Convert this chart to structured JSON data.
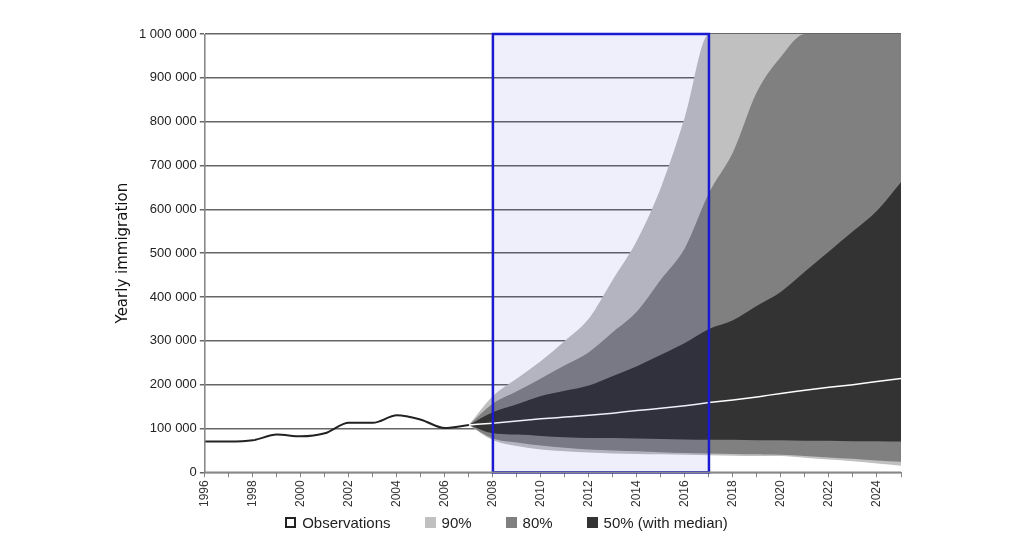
{
  "chart_data": {
    "type": "line",
    "ylabel": "Yearly immigration",
    "legend": "bottom",
    "grid": "y",
    "marker": "none",
    "xlim": [
      1996,
      2025
    ],
    "xticks": [
      1996,
      {
        "value": 1997,
        "label": null
      },
      1998,
      {
        "value": 1999,
        "label": null
      },
      2000,
      {
        "value": 2001,
        "label": null
      },
      2002,
      {
        "value": 2003,
        "label": null
      },
      2004,
      {
        "value": 2005,
        "label": null
      },
      2006,
      {
        "value": 2007,
        "label": null
      },
      2008,
      {
        "value": 2009,
        "label": null
      },
      2010,
      {
        "value": 2011,
        "label": null
      },
      2012,
      {
        "value": 2013,
        "label": null
      },
      2014,
      {
        "value": 2015,
        "label": null
      },
      2016,
      {
        "value": 2017,
        "label": null
      },
      2018,
      {
        "value": 2019,
        "label": null
      },
      2020,
      {
        "value": 2021,
        "label": null
      },
      2022,
      {
        "value": 2023,
        "label": null
      },
      2024,
      {
        "value": 2025,
        "label": null
      }
    ],
    "ylim": [
      0,
      1000000
    ],
    "yticks": [
      0,
      {
        "value": 100000,
        "label": "100 000"
      },
      {
        "value": 200000,
        "label": "200 000"
      },
      {
        "value": 300000,
        "label": "300 000"
      },
      {
        "value": 400000,
        "label": "400 000"
      },
      {
        "value": 500000,
        "label": "500 000"
      },
      {
        "value": 600000,
        "label": "600 000"
      },
      {
        "value": 700000,
        "label": "700 000"
      },
      {
        "value": 800000,
        "label": "800 000"
      },
      {
        "value": 900000,
        "label": "900 000"
      },
      {
        "value": 1000000,
        "label": "1 000 000"
      }
    ],
    "bands": [
      {
        "axis": "x",
        "from": 2008,
        "to": 2017,
        "color": "#1a1ad0"
      }
    ],
    "series": [
      {
        "name": "Observations",
        "type": "line",
        "color": "#222222",
        "x": [
          1996,
          1997,
          1998,
          1999,
          2000,
          2001,
          2002,
          2003,
          2004,
          2005,
          2006,
          2007
        ],
        "values": [
          70000,
          70000,
          73000,
          86000,
          82000,
          89000,
          113000,
          113000,
          130000,
          120000,
          101000,
          108000
        ]
      },
      {
        "name": "90%",
        "type": "area",
        "color": "#c0c0c0",
        "x": [
          2007,
          2008,
          2009,
          2010,
          2011,
          2012,
          2013,
          2014,
          2015,
          2016,
          2017,
          2018,
          2019,
          2020,
          2021,
          2022,
          2023,
          2024,
          2025
        ],
        "values": [
          null,
          null,
          null,
          null,
          null,
          null,
          null,
          null,
          null,
          null,
          null,
          null,
          null,
          null,
          null,
          null,
          null,
          null,
          null
        ],
        "lower": [
          108000,
          73000,
          60000,
          52000,
          48000,
          45000,
          43000,
          42000,
          41000,
          40000,
          39000,
          38000,
          37000,
          37000,
          33000,
          29000,
          25000,
          20000,
          15000
        ],
        "upper": [
          108000,
          174000,
          214000,
          254000,
          300000,
          351000,
          440000,
          529000,
          650000,
          811000,
          1000000,
          1000000,
          1000000,
          1000000,
          1000000,
          1000000,
          1000000,
          1000000,
          1000000
        ]
      },
      {
        "name": "80%",
        "type": "area",
        "color": "#808080",
        "x": [
          2007,
          2008,
          2009,
          2010,
          2011,
          2012,
          2013,
          2014,
          2015,
          2016,
          2017,
          2018,
          2019,
          2020,
          2021,
          2022,
          2023,
          2024,
          2025
        ],
        "values": [
          null,
          null,
          null,
          null,
          null,
          null,
          null,
          null,
          null,
          null,
          null,
          null,
          null,
          null,
          null,
          null,
          null,
          null,
          null
        ],
        "lower": [
          108000,
          77000,
          68000,
          61000,
          56000,
          52000,
          50000,
          48000,
          46000,
          44000,
          43000,
          42000,
          41000,
          40000,
          37000,
          34000,
          31000,
          27000,
          24000
        ],
        "upper": [
          108000,
          157000,
          185000,
          214000,
          244000,
          274000,
          320000,
          367000,
          440000,
          512000,
          637000,
          730000,
          868000,
          948000,
          1000000,
          1000000,
          1000000,
          1000000,
          1000000
        ]
      },
      {
        "name": "50% (with median)",
        "type": "area",
        "color": "#333333",
        "x": [
          2007,
          2008,
          2009,
          2010,
          2011,
          2012,
          2013,
          2014,
          2015,
          2016,
          2017,
          2018,
          2019,
          2020,
          2021,
          2022,
          2023,
          2024,
          2025
        ],
        "values": [
          null,
          null,
          null,
          null,
          null,
          null,
          null,
          null,
          null,
          null,
          null,
          null,
          null,
          null,
          null,
          null,
          null,
          null,
          null
        ],
        "lower": [
          108000,
          89000,
          86000,
          83000,
          80000,
          78000,
          78000,
          77000,
          76000,
          75000,
          74000,
          74000,
          73000,
          73000,
          72000,
          72000,
          71000,
          71000,
          70000
        ],
        "upper": [
          108000,
          137000,
          155000,
          174000,
          186000,
          198000,
          220000,
          242000,
          268000,
          295000,
          327000,
          347000,
          380000,
          412000,
          458000,
          504000,
          550000,
          597000,
          662000
        ]
      },
      {
        "type": "line",
        "color": "#ffffff",
        "x": [
          2007,
          2008,
          2009,
          2010,
          2011,
          2012,
          2013,
          2014,
          2015,
          2016,
          2017,
          2018,
          2019,
          2020,
          2021,
          2022,
          2023,
          2024,
          2025
        ],
        "values": [
          108000,
          112000,
          117000,
          122000,
          126000,
          130000,
          135000,
          141000,
          146000,
          152000,
          159000,
          165000,
          172000,
          180000,
          187000,
          194000,
          200000,
          207000,
          214000
        ]
      }
    ]
  }
}
